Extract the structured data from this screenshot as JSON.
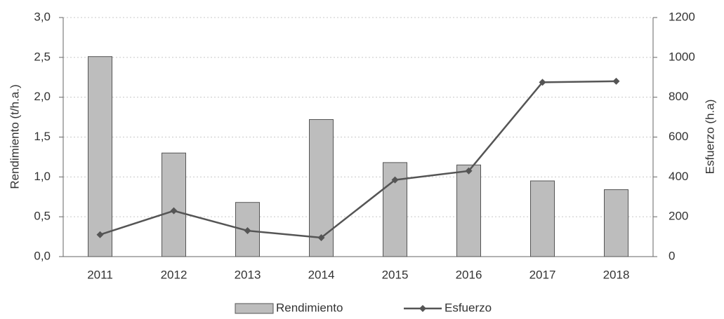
{
  "chart_data": {
    "type": "combo",
    "categories": [
      "2011",
      "2012",
      "2013",
      "2014",
      "2015",
      "2016",
      "2017",
      "2018"
    ],
    "y_label": "Rendimiento (t/h.a.)",
    "y2_label": "Esfuerzo (h.a)",
    "ylim": [
      0,
      3
    ],
    "yticks": [
      {
        "value": 0,
        "label": "0,0"
      },
      {
        "value": 0.5,
        "label": "0,5"
      },
      {
        "value": 1,
        "label": "1,0"
      },
      {
        "value": 1.5,
        "label": "1,5"
      },
      {
        "value": 2,
        "label": "2,0"
      },
      {
        "value": 2.5,
        "label": "2,5"
      },
      {
        "value": 3,
        "label": "3,0"
      }
    ],
    "y2lim": [
      0,
      1200
    ],
    "y2ticks": [
      0,
      200,
      400,
      600,
      800,
      1000,
      1200
    ],
    "grid": true,
    "legend": "bottom",
    "series": [
      {
        "name": "Rendimiento",
        "type": "bar",
        "color": "#bdbdbd",
        "values": [
          2.51,
          1.3,
          0.68,
          1.72,
          1.18,
          1.15,
          0.95,
          0.84
        ]
      },
      {
        "name": "Esfuerzo",
        "type": "line",
        "axis": "y2",
        "color": "#555555",
        "values": [
          110,
          230,
          130,
          95,
          385,
          430,
          875,
          880
        ]
      }
    ]
  }
}
